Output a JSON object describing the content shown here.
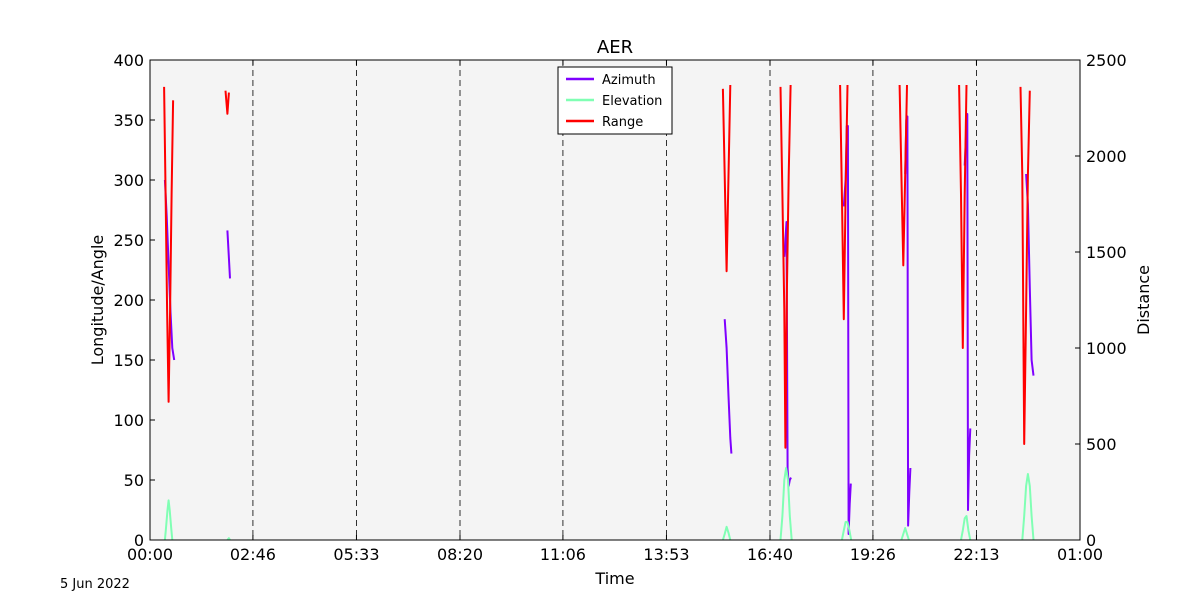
{
  "date": "5 Jun 2022",
  "chart_data": {
    "type": "line",
    "title": "AER",
    "xlabel": "Time",
    "ylabel": "Longitude/Angle",
    "y2label": "Distance",
    "xlim_hours": [
      0,
      25
    ],
    "ylim": [
      0,
      400
    ],
    "y2lim": [
      0,
      2500
    ],
    "x_ticks": [
      {
        "h": 0,
        "label": "00:00"
      },
      {
        "h": 2.7667,
        "label": "02:46"
      },
      {
        "h": 5.55,
        "label": "05:33"
      },
      {
        "h": 8.3333,
        "label": "08:20"
      },
      {
        "h": 11.1,
        "label": "11:06"
      },
      {
        "h": 13.8833,
        "label": "13:53"
      },
      {
        "h": 16.6667,
        "label": "16:40"
      },
      {
        "h": 19.4333,
        "label": "19:26"
      },
      {
        "h": 22.2167,
        "label": "22:13"
      },
      {
        "h": 25,
        "label": "01:00"
      }
    ],
    "y_ticks": [
      0,
      50,
      100,
      150,
      200,
      250,
      300,
      350,
      400
    ],
    "y2_ticks": [
      0,
      500,
      1000,
      1500,
      2000,
      2500
    ],
    "vlines_hours": [
      2.7667,
      5.55,
      8.3333,
      11.1,
      13.8833,
      16.6667,
      19.4333,
      22.2167
    ],
    "legend_position": "top-center",
    "grid": false,
    "background": "#f4f4f4",
    "series": [
      {
        "name": "Azimuth",
        "axis": "left",
        "color": "#7f00ff",
        "segments": [
          [
            [
              0.4,
              300
            ],
            [
              0.45,
              270
            ],
            [
              0.5,
              230
            ],
            [
              0.55,
              190
            ],
            [
              0.6,
              160
            ],
            [
              0.65,
              150
            ]
          ],
          [
            [
              2.08,
              258
            ],
            [
              2.12,
              235
            ],
            [
              2.15,
              218
            ]
          ],
          [
            [
              15.45,
              184
            ],
            [
              15.5,
              160
            ],
            [
              15.55,
              120
            ],
            [
              15.6,
              85
            ],
            [
              15.63,
              72
            ]
          ],
          [
            [
              17.05,
              236
            ],
            [
              17.08,
              250
            ],
            [
              17.11,
              265
            ],
            [
              17.14,
              60
            ],
            [
              17.17,
              45
            ],
            [
              17.2,
              50
            ],
            [
              17.23,
              52
            ]
          ],
          [
            [
              18.65,
              278
            ],
            [
              18.7,
              300
            ],
            [
              18.73,
              345
            ],
            [
              18.76,
              345
            ],
            [
              18.78,
              5
            ],
            [
              18.81,
              30
            ],
            [
              18.84,
              47
            ]
          ],
          [
            [
              20.3,
              305
            ],
            [
              20.33,
              350
            ],
            [
              20.36,
              353
            ],
            [
              20.38,
              12
            ],
            [
              20.41,
              40
            ],
            [
              20.44,
              60
            ]
          ],
          [
            [
              21.9,
              312
            ],
            [
              21.94,
              340
            ],
            [
              21.97,
              355
            ],
            [
              21.99,
              25
            ],
            [
              22.02,
              70
            ],
            [
              22.05,
              93
            ]
          ],
          [
            [
              23.55,
              305
            ],
            [
              23.6,
              280
            ],
            [
              23.65,
              210
            ],
            [
              23.7,
              150
            ],
            [
              23.75,
              137
            ]
          ]
        ]
      },
      {
        "name": "Elevation",
        "axis": "left",
        "color": "#80ffb4",
        "segments": [
          [
            [
              0.4,
              0
            ],
            [
              0.43,
              10
            ],
            [
              0.47,
              25
            ],
            [
              0.5,
              33
            ],
            [
              0.53,
              25
            ],
            [
              0.57,
              10
            ],
            [
              0.6,
              0
            ]
          ],
          [
            [
              2.08,
              0
            ],
            [
              2.12,
              1.5
            ],
            [
              2.15,
              0
            ]
          ],
          [
            [
              15.4,
              0
            ],
            [
              15.45,
              5
            ],
            [
              15.5,
              11
            ],
            [
              15.55,
              6
            ],
            [
              15.6,
              0
            ]
          ],
          [
            [
              16.95,
              0
            ],
            [
              17.0,
              20
            ],
            [
              17.05,
              50
            ],
            [
              17.1,
              60
            ],
            [
              17.15,
              50
            ],
            [
              17.2,
              20
            ],
            [
              17.25,
              0
            ]
          ],
          [
            [
              18.6,
              0
            ],
            [
              18.65,
              8
            ],
            [
              18.7,
              15
            ],
            [
              18.75,
              15
            ],
            [
              18.8,
              8
            ],
            [
              18.85,
              0
            ]
          ],
          [
            [
              20.2,
              0
            ],
            [
              20.25,
              5
            ],
            [
              20.3,
              10
            ],
            [
              20.35,
              5
            ],
            [
              20.4,
              0
            ]
          ],
          [
            [
              21.8,
              0
            ],
            [
              21.85,
              8
            ],
            [
              21.9,
              18
            ],
            [
              21.95,
              20
            ],
            [
              22.0,
              8
            ],
            [
              22.05,
              0
            ]
          ],
          [
            [
              23.45,
              0
            ],
            [
              23.5,
              20
            ],
            [
              23.55,
              45
            ],
            [
              23.6,
              55
            ],
            [
              23.65,
              45
            ],
            [
              23.7,
              20
            ],
            [
              23.75,
              0
            ]
          ]
        ]
      },
      {
        "name": "Range",
        "axis": "right",
        "color": "#ff0000",
        "segments": [
          [
            [
              0.38,
              2360
            ],
            [
              0.42,
              1800
            ],
            [
              0.46,
              1200
            ],
            [
              0.5,
              720
            ],
            [
              0.54,
              1200
            ],
            [
              0.58,
              1800
            ],
            [
              0.62,
              2290
            ]
          ],
          [
            [
              2.03,
              2340
            ],
            [
              2.08,
              2220
            ],
            [
              2.12,
              2330
            ]
          ],
          [
            [
              15.4,
              2350
            ],
            [
              15.45,
              1900
            ],
            [
              15.5,
              1400
            ],
            [
              15.55,
              1900
            ],
            [
              15.6,
              2370
            ]
          ],
          [
            [
              16.95,
              2360
            ],
            [
              17.0,
              1800
            ],
            [
              17.05,
              1200
            ],
            [
              17.08,
              480
            ],
            [
              17.12,
              1300
            ],
            [
              17.17,
              1900
            ],
            [
              17.22,
              2370
            ]
          ],
          [
            [
              18.55,
              2370
            ],
            [
              18.6,
              1800
            ],
            [
              18.65,
              1150
            ],
            [
              18.7,
              1800
            ],
            [
              18.75,
              2370
            ]
          ],
          [
            [
              20.15,
              2370
            ],
            [
              20.2,
              1900
            ],
            [
              20.25,
              1430
            ],
            [
              20.3,
              1900
            ],
            [
              20.35,
              2370
            ]
          ],
          [
            [
              21.75,
              2370
            ],
            [
              21.8,
              1800
            ],
            [
              21.85,
              1000
            ],
            [
              21.9,
              1800
            ],
            [
              21.95,
              2370
            ]
          ],
          [
            [
              23.4,
              2360
            ],
            [
              23.45,
              1900
            ],
            [
              23.5,
              500
            ],
            [
              23.55,
              1200
            ],
            [
              23.6,
              1900
            ],
            [
              23.65,
              2340
            ]
          ]
        ]
      }
    ]
  }
}
